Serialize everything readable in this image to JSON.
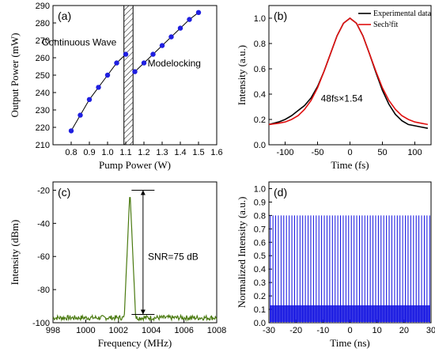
{
  "chart_data": [
    {
      "type": "line",
      "panel_label": "(a)",
      "xlabel": "Pump Power (W)",
      "ylabel": "Output Power (mW)",
      "xlim": [
        0.7,
        1.6
      ],
      "ylim": [
        210,
        290
      ],
      "xticks": [
        "0.8",
        "0.9",
        "1.0",
        "1.1",
        "1.2",
        "1.3",
        "1.4",
        "1.5",
        "1.6"
      ],
      "yticks": [
        "210",
        "220",
        "230",
        "240",
        "250",
        "260",
        "270",
        "280",
        "290"
      ],
      "annotations": [
        "Continuous Wave",
        "Modelocking"
      ],
      "hatched_region_x": [
        1.09,
        1.14
      ],
      "color": "#1f1fe0",
      "series": [
        {
          "x": [
            0.8,
            0.85,
            0.9,
            0.95,
            1.0,
            1.05,
            1.1
          ],
          "y": [
            218,
            227,
            236,
            243,
            250,
            257,
            262
          ]
        },
        {
          "x": [
            1.15,
            1.2,
            1.25,
            1.3,
            1.35,
            1.4,
            1.45,
            1.5
          ],
          "y": [
            252,
            257,
            262,
            267,
            272,
            277,
            282,
            286
          ]
        }
      ]
    },
    {
      "type": "line",
      "panel_label": "(b)",
      "xlabel": "Time (fs)",
      "ylabel": "Intensity (a.u.)",
      "xlim": [
        -125,
        125
      ],
      "ylim": [
        0.0,
        1.1
      ],
      "xticks": [
        "-100",
        "-50",
        "0",
        "50",
        "100"
      ],
      "yticks": [
        "0.0",
        "0.2",
        "0.4",
        "0.6",
        "0.8",
        "1.0"
      ],
      "annotations": [
        "48fs×1.54"
      ],
      "legend": [
        "Experimental data",
        "Sech²fit"
      ],
      "legend_position": "top-right",
      "series": [
        {
          "name": "Experimental data",
          "color": "#000000",
          "x": [
            -125,
            -110,
            -100,
            -90,
            -80,
            -70,
            -60,
            -50,
            -40,
            -30,
            -20,
            -10,
            0,
            10,
            20,
            30,
            40,
            50,
            60,
            70,
            80,
            90,
            100,
            110,
            120
          ],
          "y": [
            0.16,
            0.18,
            0.2,
            0.23,
            0.27,
            0.31,
            0.37,
            0.46,
            0.58,
            0.72,
            0.86,
            0.96,
            1.0,
            0.96,
            0.86,
            0.72,
            0.57,
            0.43,
            0.32,
            0.24,
            0.19,
            0.16,
            0.15,
            0.14,
            0.13
          ]
        },
        {
          "name": "Sech²fit",
          "color": "#e01010",
          "x": [
            -125,
            -110,
            -100,
            -90,
            -80,
            -70,
            -60,
            -50,
            -40,
            -30,
            -20,
            -10,
            0,
            10,
            20,
            30,
            40,
            50,
            60,
            70,
            80,
            90,
            100,
            110,
            120
          ],
          "y": [
            0.16,
            0.17,
            0.18,
            0.2,
            0.23,
            0.28,
            0.35,
            0.45,
            0.58,
            0.72,
            0.86,
            0.96,
            1.0,
            0.96,
            0.86,
            0.72,
            0.58,
            0.45,
            0.35,
            0.28,
            0.23,
            0.2,
            0.18,
            0.17,
            0.16
          ]
        }
      ]
    },
    {
      "type": "line",
      "panel_label": "(c)",
      "xlabel": "Frequency (MHz)",
      "ylabel": "Intensity (dBm)",
      "xlim": [
        998,
        1008
      ],
      "ylim": [
        -100,
        -15
      ],
      "xticks": [
        "998",
        "1000",
        "1002",
        "1004",
        "1006",
        "1008"
      ],
      "yticks": [
        "-100",
        "-80",
        "-60",
        "-40",
        "-20"
      ],
      "annotations": [
        "SNR=75 dB"
      ],
      "color": "#4a7a10",
      "peak_x": 1002.7,
      "peak_y": -20,
      "noise_floor": -97,
      "snr_marker_y": [
        -20,
        -95
      ]
    },
    {
      "type": "line",
      "panel_label": "(d)",
      "xlabel": "Time (ns)",
      "ylabel": "Normalized Intensity (a.u.)",
      "xlim": [
        -30,
        30
      ],
      "ylim": [
        0.0,
        1.05
      ],
      "xticks": [
        "-30",
        "-20",
        "-10",
        "0",
        "10",
        "20",
        "30"
      ],
      "yticks": [
        "0.0",
        "0.1",
        "0.2",
        "0.3",
        "0.4",
        "0.5",
        "0.6",
        "0.7",
        "0.8",
        "0.9",
        "1.0"
      ],
      "color": "#1010e0",
      "pulse_period_ns": 1.0,
      "pulse_peak": 0.8,
      "baseline_band": 0.13
    }
  ]
}
